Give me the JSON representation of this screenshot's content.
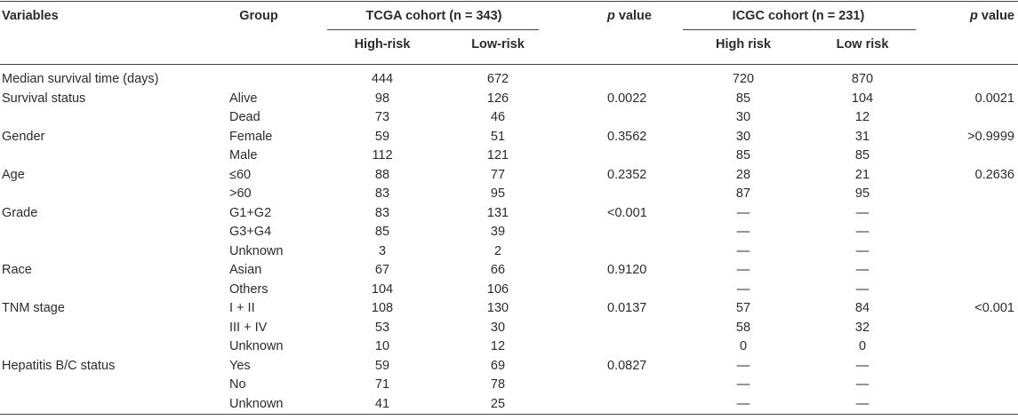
{
  "table": {
    "header": {
      "variables": "Variables",
      "group": "Group",
      "tcga": "TCGA cohort (n = 343)",
      "icgc": "ICGC cohort (n = 231)",
      "p1": {
        "italic": "p",
        "rest": "value"
      },
      "p2": {
        "italic": "p",
        "rest": "value"
      },
      "tcga_high": "High-risk",
      "tcga_low": "Low-risk",
      "icgc_high": "High risk",
      "icgc_low": "Low risk"
    },
    "rows": [
      [
        "Median survival time (days)",
        null,
        "444",
        "672",
        null,
        "720",
        "870",
        null
      ],
      [
        "Survival status",
        "Alive",
        "98",
        "126",
        "0.0022",
        "85",
        "104",
        "0.0021"
      ],
      [
        null,
        "Dead",
        "73",
        "46",
        null,
        "30",
        "12",
        null
      ],
      [
        "Gender",
        "Female",
        "59",
        "51",
        "0.3562",
        "30",
        "31",
        ">0.9999"
      ],
      [
        null,
        "Male",
        "112",
        "121",
        null,
        "85",
        "85",
        null
      ],
      [
        "Age",
        "≤60",
        "88",
        "77",
        "0.2352",
        "28",
        "21",
        "0.2636"
      ],
      [
        null,
        ">60",
        "83",
        "95",
        null,
        "87",
        "95",
        null
      ],
      [
        "Grade",
        "G1+G2",
        "83",
        "131",
        "<0.001",
        "—",
        "—",
        null
      ],
      [
        null,
        "G3+G4",
        "85",
        "39",
        null,
        "—",
        "—",
        null
      ],
      [
        null,
        "Unknown",
        "3",
        "2",
        null,
        "—",
        "—",
        null
      ],
      [
        "Race",
        "Asian",
        "67",
        "66",
        "0.9120",
        "—",
        "—",
        null
      ],
      [
        null,
        "Others",
        "104",
        "106",
        null,
        "—",
        "—",
        null
      ],
      [
        "TNM stage",
        "I + II",
        "108",
        "130",
        "0.0137",
        "57",
        "84",
        "<0.001"
      ],
      [
        null,
        "III + IV",
        "53",
        "30",
        null,
        "58",
        "32",
        null
      ],
      [
        null,
        "Unknown",
        "10",
        "12",
        null,
        "0",
        "0",
        null
      ],
      [
        "Hepatitis B/C status",
        "Yes",
        "59",
        "69",
        "0.0827",
        "—",
        "—",
        null
      ],
      [
        null,
        "No",
        "71",
        "78",
        null,
        "—",
        "—",
        null
      ],
      [
        null,
        "Unknown",
        "41",
        "25",
        null,
        "—",
        "—",
        null
      ]
    ]
  }
}
